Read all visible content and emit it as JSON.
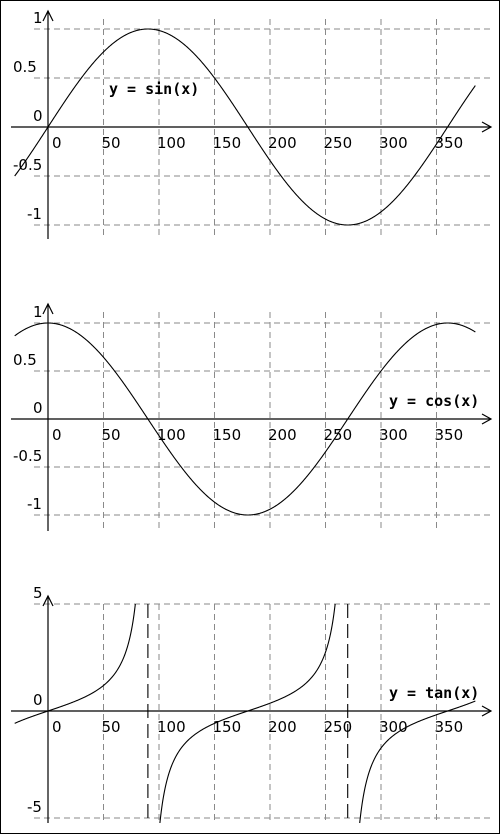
{
  "colors": {
    "curve": "#000000",
    "grid": "#8a8a8a",
    "background": "#ffffff"
  },
  "chart_data": [
    {
      "type": "line",
      "title": "y = sin(x)",
      "xlabel": "",
      "ylabel": "",
      "function": "sin",
      "angle_unit": "degrees",
      "xlim": [
        -30,
        385
      ],
      "ylim": [
        -1.2,
        1.15
      ],
      "grid": true,
      "x_ticks": [
        0,
        50,
        100,
        150,
        200,
        250,
        300,
        350
      ],
      "x_tick_labels": [
        "0",
        "50",
        "100",
        "150",
        "200",
        "250",
        "300",
        "350"
      ],
      "y_ticks": [
        1,
        0.5,
        0,
        -0.5,
        -1
      ],
      "y_tick_labels": [
        "1",
        "0.5",
        "0",
        "-0.5",
        "-1"
      ],
      "series": [
        {
          "x": [
            -30,
            0,
            30,
            60,
            90,
            120,
            150,
            180,
            210,
            240,
            270,
            300,
            330,
            360,
            385
          ],
          "y": [
            -0.5,
            0,
            0.5,
            0.866,
            1,
            0.866,
            0.5,
            0,
            -0.5,
            -0.866,
            -1,
            -0.866,
            -0.5,
            0,
            0.423
          ]
        }
      ]
    },
    {
      "type": "line",
      "title": "y = cos(x)",
      "xlabel": "",
      "ylabel": "",
      "function": "cos",
      "angle_unit": "degrees",
      "xlim": [
        -30,
        385
      ],
      "ylim": [
        -1.2,
        1.15
      ],
      "grid": true,
      "x_ticks": [
        0,
        50,
        100,
        150,
        200,
        250,
        300,
        350
      ],
      "x_tick_labels": [
        "0",
        "50",
        "100",
        "150",
        "200",
        "250",
        "300",
        "350"
      ],
      "y_ticks": [
        1,
        0.5,
        0,
        -0.5,
        -1
      ],
      "y_tick_labels": [
        "1",
        "0.5",
        "0",
        "-0.5",
        "-1"
      ],
      "series": [
        {
          "x": [
            -30,
            0,
            30,
            60,
            90,
            120,
            150,
            180,
            210,
            240,
            270,
            300,
            330,
            360,
            385
          ],
          "y": [
            0.866,
            1,
            0.866,
            0.5,
            0,
            -0.5,
            -0.866,
            -1,
            -0.866,
            -0.5,
            0,
            0.5,
            0.866,
            1,
            0.906
          ]
        }
      ]
    },
    {
      "type": "line",
      "title": "y = tan(x)",
      "xlabel": "",
      "ylabel": "",
      "function": "tan",
      "angle_unit": "degrees",
      "xlim": [
        -30,
        385
      ],
      "ylim": [
        -6.2,
        5.6
      ],
      "grid": true,
      "asymptotes": [
        90,
        270
      ],
      "x_ticks": [
        0,
        50,
        100,
        150,
        200,
        250,
        300,
        350
      ],
      "x_tick_labels": [
        "0",
        "50",
        "100",
        "150",
        "200",
        "250",
        "300",
        "350"
      ],
      "y_ticks": [
        5,
        0,
        -5
      ],
      "y_tick_labels": [
        "5",
        "0",
        "-5"
      ],
      "series": [
        {
          "x": [
            0,
            30,
            45,
            60,
            70,
            80,
            85,
            95,
            100,
            110,
            120,
            135,
            150,
            180,
            210,
            225,
            240,
            250,
            260,
            265,
            275,
            280,
            290,
            300,
            315,
            330,
            360,
            385
          ],
          "y": [
            0,
            0.577,
            1,
            1.732,
            2.747,
            5.671,
            11.43,
            -11.43,
            -5.671,
            -2.747,
            -1.732,
            -1,
            -0.577,
            0,
            0.577,
            1,
            1.732,
            2.747,
            5.671,
            11.43,
            -11.43,
            -5.671,
            -2.747,
            -1.732,
            -1,
            -0.577,
            0,
            0.466
          ]
        }
      ]
    }
  ]
}
